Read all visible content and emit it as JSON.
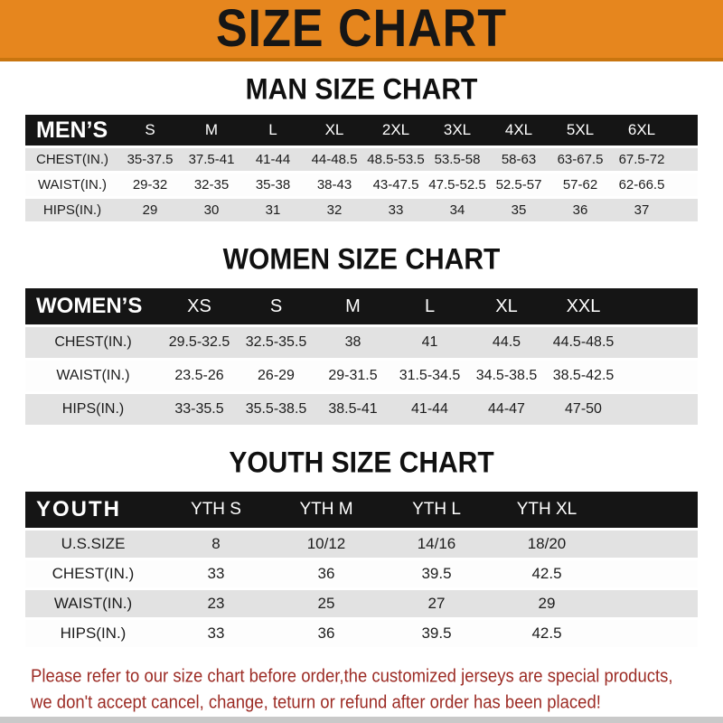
{
  "banner": {
    "title": "SIZE CHART"
  },
  "chart_data": [
    {
      "type": "table",
      "slug": "man",
      "title": "MAN SIZE CHART",
      "corner_label": "MEN’S",
      "columns": [
        "S",
        "M",
        "L",
        "XL",
        "2XL",
        "3XL",
        "4XL",
        "5XL",
        "6XL"
      ],
      "rows": [
        {
          "label": "CHEST(IN.)",
          "values": [
            "35-37.5",
            "37.5-41",
            "41-44",
            "44-48.5",
            "48.5-53.5",
            "53.5-58",
            "58-63",
            "63-67.5",
            "67.5-72"
          ]
        },
        {
          "label": "WAIST(IN.)",
          "values": [
            "29-32",
            "32-35",
            "35-38",
            "38-43",
            "43-47.5",
            "47.5-52.5",
            "52.5-57",
            "57-62",
            "62-66.5"
          ]
        },
        {
          "label": "HIPS(IN.)",
          "values": [
            "29",
            "30",
            "31",
            "32",
            "33",
            "34",
            "35",
            "36",
            "37"
          ]
        }
      ]
    },
    {
      "type": "table",
      "slug": "women",
      "title": "WOMEN SIZE CHART",
      "corner_label": "WOMEN’S",
      "columns": [
        "XS",
        "S",
        "M",
        "L",
        "XL",
        "XXL"
      ],
      "rows": [
        {
          "label": "CHEST(IN.)",
          "values": [
            "29.5-32.5",
            "32.5-35.5",
            "38",
            "41",
            "44.5",
            "44.5-48.5"
          ]
        },
        {
          "label": "WAIST(IN.)",
          "values": [
            "23.5-26",
            "26-29",
            "29-31.5",
            "31.5-34.5",
            "34.5-38.5",
            "38.5-42.5"
          ]
        },
        {
          "label": "HIPS(IN.)",
          "values": [
            "33-35.5",
            "35.5-38.5",
            "38.5-41",
            "41-44",
            "44-47",
            "47-50"
          ]
        }
      ]
    },
    {
      "type": "table",
      "slug": "youth",
      "title": "YOUTH SIZE CHART",
      "corner_label": "YOUTH",
      "columns": [
        "YTH S",
        "YTH M",
        "YTH L",
        "YTH XL"
      ],
      "rows": [
        {
          "label": "U.S.SIZE",
          "values": [
            "8",
            "10/12",
            "14/16",
            "18/20"
          ]
        },
        {
          "label": "CHEST(IN.)",
          "values": [
            "33",
            "36",
            "39.5",
            "42.5"
          ]
        },
        {
          "label": "WAIST(IN.)",
          "values": [
            "23",
            "25",
            "27",
            "29"
          ]
        },
        {
          "label": "HIPS(IN.)",
          "values": [
            "33",
            "36",
            "39.5",
            "42.5"
          ]
        }
      ]
    }
  ],
  "footer": {
    "line1": "Please refer to our size chart before order,the customized jerseys are special products,",
    "line2": "we don't accept cancel, change, teturn or refund after order has been placed!"
  },
  "colors": {
    "banner_orange": "#E6861E",
    "banner_edge": "#C9750F",
    "bar_black": "#151515",
    "row_gray": "#E2E2E2",
    "notice_red": "#9C2B24",
    "bottom_strip_gray": "#C9C9C9"
  }
}
